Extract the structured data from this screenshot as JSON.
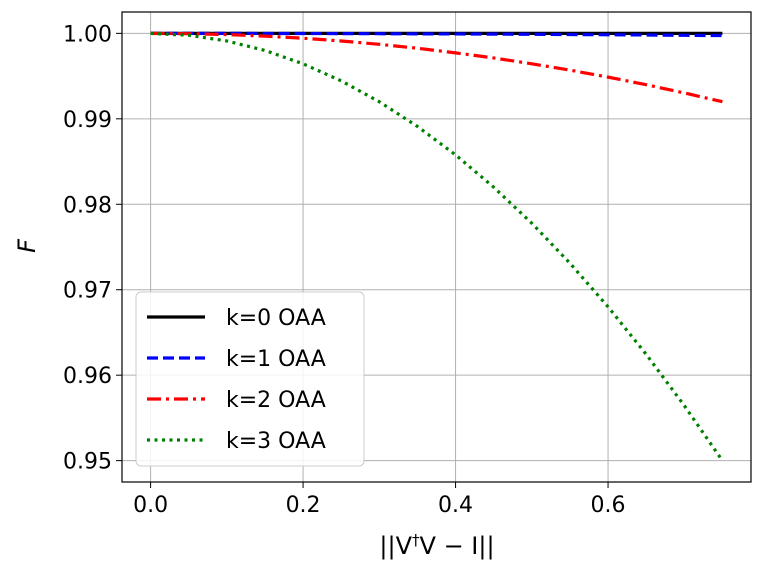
{
  "chart_data": {
    "type": "line",
    "title": "",
    "xlabel": "||V†V − I||",
    "ylabel": "F",
    "xlim": [
      -0.0375,
      0.7875
    ],
    "ylim": [
      0.9475,
      1.0025
    ],
    "xticks": [
      0.0,
      0.2,
      0.4,
      0.6
    ],
    "xtick_labels": [
      "0.0",
      "0.2",
      "0.4",
      "0.6"
    ],
    "yticks": [
      0.95,
      0.96,
      0.97,
      0.98,
      0.99,
      1.0
    ],
    "ytick_labels": [
      "0.95",
      "0.96",
      "0.97",
      "0.98",
      "0.99",
      "1.00"
    ],
    "grid": true,
    "legend_position": "lower-left",
    "x": [
      0.0,
      0.05,
      0.1,
      0.15,
      0.2,
      0.25,
      0.3,
      0.35,
      0.4,
      0.45,
      0.5,
      0.55,
      0.6,
      0.65,
      0.7,
      0.75
    ],
    "series": [
      {
        "name": "k=0 OAA",
        "color": "#000000",
        "style": "solid",
        "values": [
          1.0,
          1.0,
          1.0,
          1.0,
          1.0,
          1.0,
          1.0,
          1.0,
          1.0,
          1.0,
          1.0,
          1.0,
          1.0,
          1.0,
          1.0,
          1.0
        ]
      },
      {
        "name": "k=1 OAA",
        "color": "#0000ff",
        "style": "dashed",
        "values": [
          1.0,
          1.0,
          1.0,
          0.99999,
          0.99998,
          0.99997,
          0.99996,
          0.99994,
          0.99993,
          0.99991,
          0.99989,
          0.99986,
          0.99984,
          0.99981,
          0.99977,
          0.99974
        ]
      },
      {
        "name": "k=2 OAA",
        "color": "#ff0000",
        "style": "dashdot",
        "values": [
          1.0,
          0.99996,
          0.99986,
          0.99968,
          0.99943,
          0.99911,
          0.99872,
          0.99826,
          0.99772,
          0.99712,
          0.99644,
          0.9957,
          0.99488,
          0.99399,
          0.99303,
          0.992
        ]
      },
      {
        "name": "k=3 OAA",
        "color": "#008000",
        "style": "dotted",
        "values": [
          1.0,
          0.99978,
          0.99911,
          0.998,
          0.99644,
          0.99444,
          0.992,
          0.98911,
          0.98578,
          0.982,
          0.97778,
          0.97311,
          0.968,
          0.96244,
          0.95644,
          0.95
        ]
      }
    ]
  }
}
